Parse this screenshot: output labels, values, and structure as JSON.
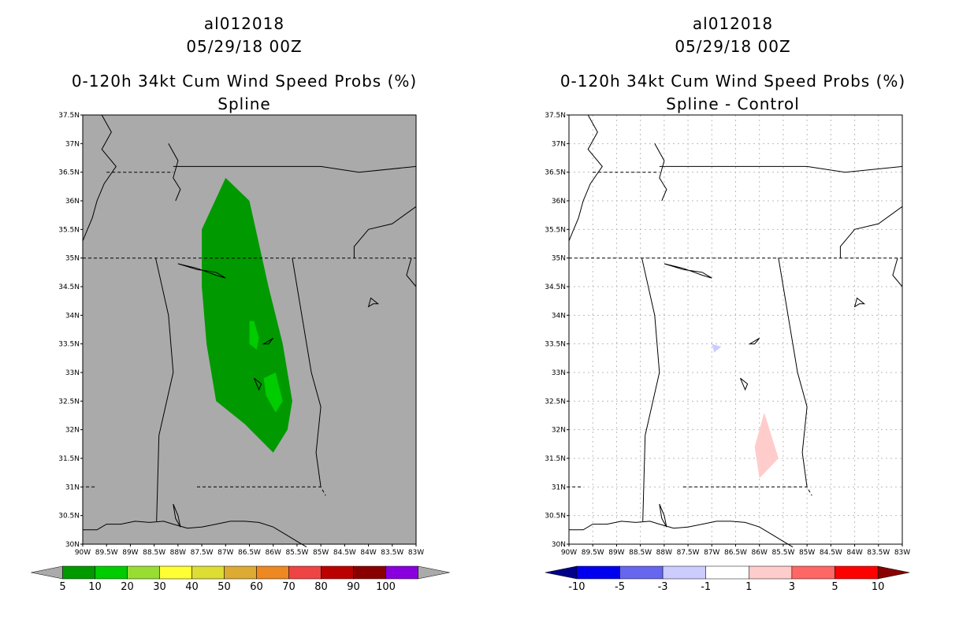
{
  "left_panel": {
    "storm_id": "al012018",
    "datetime": "05/29/18 00Z",
    "product": "0-120h 34kt Cum Wind Speed Probs (%)",
    "variant": "Spline",
    "background_color": "#aaaaaa",
    "legend": {
      "labels": [
        "5",
        "10",
        "20",
        "30",
        "40",
        "50",
        "60",
        "70",
        "80",
        "90",
        "100"
      ],
      "colors": [
        "#009900",
        "#00cc00",
        "#99dd33",
        "#ffff33",
        "#dddd33",
        "#ddaa33",
        "#ee8822",
        "#ee4444",
        "#bb0000",
        "#880000",
        "#8800dd"
      ],
      "left_end_color": "#aaaaaa",
      "right_end_color": "#aaaaaa"
    }
  },
  "right_panel": {
    "storm_id": "al012018",
    "datetime": "05/29/18 00Z",
    "product": "0-120h 34kt Cum Wind Speed Probs (%)",
    "variant": "Spline - Control",
    "background_color": "#ffffff",
    "legend": {
      "labels": [
        "-10",
        "-5",
        "-3",
        "-1",
        "1",
        "3",
        "5",
        "10"
      ],
      "colors": [
        "#0000ee",
        "#6666ee",
        "#ccccff",
        "#ffffff",
        "#ffcccc",
        "#ff6666",
        "#ff0000"
      ],
      "left_end_color": "#000088",
      "right_end_color": "#880000"
    }
  },
  "axes": {
    "lat_labels": [
      "37.5N",
      "37N",
      "36.5N",
      "36N",
      "35.5N",
      "35N",
      "34.5N",
      "34N",
      "33.5N",
      "33N",
      "32.5N",
      "32N",
      "31.5N",
      "31N",
      "30.5N",
      "30N"
    ],
    "lon_labels": [
      "90W",
      "89.5W",
      "89W",
      "88.5W",
      "88W",
      "87.5W",
      "87W",
      "86.5W",
      "86W",
      "85.5W",
      "85W",
      "84.5W",
      "84W",
      "83.5W",
      "83W"
    ]
  },
  "map_colors": {
    "prob_5": "#009900",
    "prob_10": "#00cc00",
    "diff_neg": "#ccccff",
    "diff_pos": "#ffcccc"
  }
}
